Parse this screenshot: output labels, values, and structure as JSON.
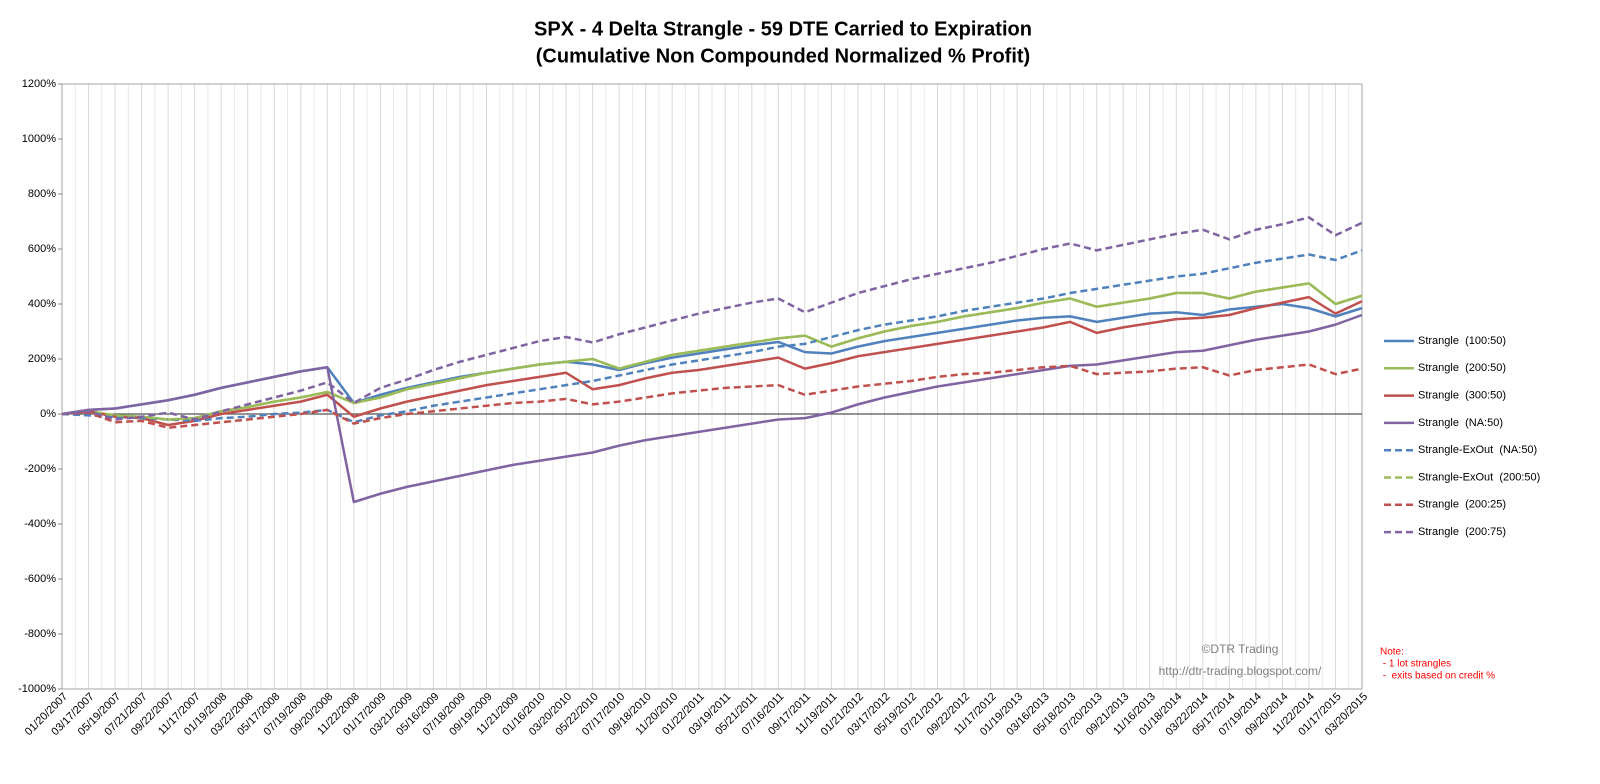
{
  "chart_data": {
    "type": "line",
    "title": "SPX - 4 Delta Strangle - 59 DTE Carried to Expiration",
    "subtitle": "(Cumulative Non Compounded Normalized % Profit)",
    "categories": [
      "01/20/2007",
      "03/17/2007",
      "05/19/2007",
      "07/21/2007",
      "09/22/2007",
      "11/17/2007",
      "01/19/2008",
      "03/22/2008",
      "05/17/2008",
      "07/19/2008",
      "09/20/2008",
      "11/22/2008",
      "01/17/2009",
      "03/21/2009",
      "05/16/2009",
      "07/18/2009",
      "09/19/2009",
      "11/21/2009",
      "01/16/2010",
      "03/20/2010",
      "05/22/2010",
      "07/17/2010",
      "09/18/2010",
      "11/20/2010",
      "01/22/2011",
      "03/19/2011",
      "05/21/2011",
      "07/16/2011",
      "09/17/2011",
      "11/19/2011",
      "01/21/2012",
      "03/17/2012",
      "05/19/2012",
      "07/21/2012",
      "09/22/2012",
      "11/17/2012",
      "01/19/2013",
      "03/16/2013",
      "05/18/2013",
      "07/20/2013",
      "09/21/2013",
      "11/16/2013",
      "01/18/2014",
      "03/22/2014",
      "05/17/2014",
      "07/19/2014",
      "09/20/2014",
      "11/22/2014",
      "01/17/2015",
      "03/20/2015"
    ],
    "series": [
      {
        "name": "Strangle  (100:50)",
        "color": "#4f81bd",
        "dash": false,
        "values": [
          0,
          15,
          20,
          35,
          50,
          70,
          95,
          115,
          135,
          155,
          170,
          40,
          70,
          95,
          115,
          135,
          150,
          165,
          180,
          190,
          180,
          160,
          185,
          205,
          220,
          235,
          250,
          262,
          225,
          220,
          245,
          265,
          280,
          295,
          310,
          325,
          340,
          350,
          355,
          335,
          350,
          365,
          370,
          360,
          380,
          390,
          400,
          385,
          355,
          385
        ]
      },
      {
        "name": "Strangle  (200:50)",
        "color": "#9bbb59",
        "dash": false,
        "values": [
          0,
          10,
          -5,
          -10,
          -20,
          -15,
          10,
          25,
          45,
          60,
          80,
          40,
          60,
          90,
          110,
          130,
          150,
          165,
          180,
          190,
          200,
          165,
          190,
          215,
          230,
          245,
          260,
          275,
          285,
          245,
          275,
          300,
          320,
          335,
          355,
          370,
          385,
          405,
          420,
          390,
          405,
          420,
          440,
          440,
          420,
          445,
          460,
          475,
          400,
          430
        ]
      },
      {
        "name": "Strangle  (300:50)",
        "color": "#c0504d",
        "dash": false,
        "values": [
          0,
          10,
          -10,
          -15,
          -40,
          -25,
          0,
          15,
          30,
          45,
          70,
          -10,
          20,
          45,
          65,
          85,
          105,
          120,
          135,
          150,
          90,
          105,
          130,
          150,
          160,
          175,
          190,
          205,
          165,
          185,
          210,
          225,
          240,
          255,
          270,
          285,
          300,
          315,
          335,
          295,
          315,
          330,
          345,
          350,
          360,
          385,
          405,
          425,
          365,
          410
        ]
      },
      {
        "name": "Strangle  (NA:50)",
        "color": "#8064a2",
        "dash": false,
        "values": [
          0,
          15,
          20,
          35,
          50,
          70,
          95,
          115,
          135,
          155,
          170,
          -320,
          -290,
          -265,
          -245,
          -225,
          -205,
          -185,
          -170,
          -155,
          -140,
          -115,
          -95,
          -80,
          -65,
          -50,
          -35,
          -20,
          -15,
          5,
          35,
          60,
          80,
          100,
          115,
          130,
          145,
          160,
          175,
          180,
          195,
          210,
          225,
          230,
          250,
          270,
          285,
          300,
          325,
          360
        ]
      },
      {
        "name": "Strangle-ExOut  (NA:50)",
        "color": "#4f81bd",
        "dash": true,
        "values": [
          0,
          -5,
          -10,
          -15,
          -20,
          -25,
          -15,
          -10,
          0,
          5,
          15,
          -30,
          -5,
          10,
          30,
          45,
          60,
          75,
          90,
          105,
          120,
          140,
          160,
          180,
          195,
          210,
          225,
          245,
          255,
          280,
          305,
          325,
          340,
          355,
          375,
          390,
          405,
          420,
          440,
          455,
          470,
          485,
          500,
          510,
          530,
          550,
          565,
          580,
          560,
          595
        ]
      },
      {
        "name": "Strangle-ExOut  (200:50)",
        "color": "#9bbb59",
        "dash": true,
        "values": [
          0,
          10,
          -5,
          -10,
          -20,
          -15,
          10,
          25,
          45,
          60,
          80,
          40,
          60,
          90,
          110,
          130,
          150,
          165,
          180,
          190,
          200,
          165,
          190,
          215,
          230,
          245,
          260,
          275,
          285,
          245,
          275,
          300,
          320,
          335,
          355,
          370,
          385,
          405,
          420,
          390,
          405,
          420,
          440,
          440,
          420,
          445,
          460,
          475,
          400,
          430
        ]
      },
      {
        "name": "Strangle  (200:25)",
        "color": "#c0504d",
        "dash": true,
        "values": [
          0,
          5,
          -30,
          -25,
          -50,
          -40,
          -30,
          -20,
          -10,
          0,
          15,
          -35,
          -15,
          0,
          10,
          20,
          30,
          40,
          45,
          55,
          35,
          45,
          60,
          75,
          85,
          95,
          100,
          105,
          70,
          85,
          100,
          110,
          120,
          135,
          145,
          150,
          160,
          170,
          175,
          145,
          150,
          155,
          165,
          170,
          140,
          160,
          170,
          180,
          145,
          165
        ]
      },
      {
        "name": "Strangle  (200:75)",
        "color": "#8064a2",
        "dash": true,
        "values": [
          0,
          10,
          -20,
          -10,
          5,
          -20,
          10,
          35,
          60,
          85,
          115,
          40,
          95,
          125,
          160,
          190,
          215,
          240,
          265,
          280,
          260,
          290,
          315,
          340,
          365,
          385,
          405,
          420,
          370,
          405,
          440,
          465,
          490,
          510,
          530,
          550,
          575,
          600,
          620,
          595,
          615,
          635,
          655,
          670,
          635,
          670,
          690,
          715,
          650,
          695
        ]
      }
    ],
    "ylim": [
      -1000,
      1200
    ],
    "yticks": [
      {
        "value": -1000,
        "label": "-1000%"
      },
      {
        "value": -800,
        "label": "-800%"
      },
      {
        "value": -600,
        "label": "-600%"
      },
      {
        "value": -400,
        "label": "-400%"
      },
      {
        "value": -200,
        "label": "-200%"
      },
      {
        "value": 0,
        "label": "0%"
      },
      {
        "value": 200,
        "label": "200%"
      },
      {
        "value": 400,
        "label": "400%"
      },
      {
        "value": 600,
        "label": "600%"
      },
      {
        "value": 800,
        "label": "800%"
      },
      {
        "value": 1000,
        "label": "1000%"
      },
      {
        "value": 1200,
        "label": "1200%"
      }
    ],
    "xgrid": true,
    "legend": "right",
    "watermark": [
      "©DTR Trading",
      "http://dtr-trading.blogspot.com/"
    ],
    "note": [
      "Note:",
      " - 1 lot strangles",
      " -  exits based on credit %"
    ]
  }
}
